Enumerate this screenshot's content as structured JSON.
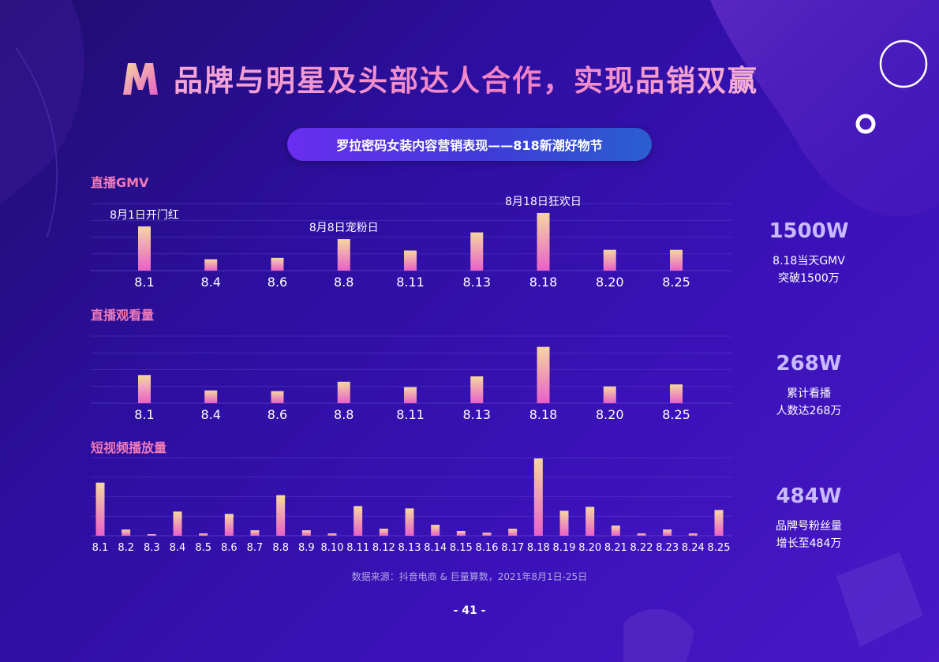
{
  "title": "品牌与明星及头部达人合作，实现品销双赢",
  "subtitle": "罗拉密码女装内容营销表现——818新潮好物节",
  "colors": {
    "bar_top": "#f6d7a0",
    "bar_bottom": "#e860c8",
    "label": "#f07ab8",
    "stat": "#c9b9ff"
  },
  "sections": {
    "gmv": {
      "label": "直播GMV",
      "stat_value": "1500W",
      "stat_line1": "8.18当天GMV",
      "stat_line2": "突破1500万"
    },
    "views": {
      "label": "直播观看量",
      "stat_value": "268W",
      "stat_line1": "累计看播",
      "stat_line2": "人数达268万"
    },
    "video": {
      "label": "短视频播放量",
      "stat_value": "484W",
      "stat_line1": "品牌号粉丝量",
      "stat_line2": "增长至484万"
    }
  },
  "source": "数据来源：抖音电商 & 巨量算数，2021年8月1日-25日",
  "page_number": "- 41 -",
  "chart_data": [
    {
      "type": "bar",
      "id": "gmv",
      "title": "直播GMV",
      "categories": [
        "8.1",
        "8.4",
        "8.6",
        "8.8",
        "8.11",
        "8.13",
        "8.18",
        "8.20",
        "8.25"
      ],
      "values": [
        66,
        17,
        19,
        47,
        30,
        57,
        86,
        31,
        31
      ],
      "ylim": [
        0,
        100
      ],
      "grid": true,
      "annotations": [
        {
          "category": "8.1",
          "text": "8月1日开门红"
        },
        {
          "category": "8.8",
          "text": "8月8日宠粉日"
        },
        {
          "category": "8.18",
          "text": "8月18日狂欢日"
        }
      ]
    },
    {
      "type": "bar",
      "id": "views",
      "title": "直播观看量",
      "categories": [
        "8.1",
        "8.4",
        "8.6",
        "8.8",
        "8.11",
        "8.13",
        "8.18",
        "8.20",
        "8.25"
      ],
      "values": [
        42,
        19,
        18,
        32,
        24,
        40,
        84,
        25,
        28
      ],
      "ylim": [
        0,
        100
      ],
      "grid": true
    },
    {
      "type": "bar",
      "id": "video",
      "title": "短视频播放量",
      "categories": [
        "8.1",
        "8.2",
        "8.3",
        "8.4",
        "8.5",
        "8.6",
        "8.7",
        "8.8",
        "8.9",
        "8.10",
        "8.11",
        "8.12",
        "8.13",
        "8.14",
        "8.15",
        "8.16",
        "8.17",
        "8.18",
        "8.19",
        "8.20",
        "8.21",
        "8.22",
        "8.23",
        "8.24",
        "8.25"
      ],
      "values": [
        68,
        8,
        2,
        31,
        3,
        28,
        7,
        52,
        7,
        3,
        38,
        9,
        35,
        14,
        6,
        4,
        9,
        99,
        32,
        37,
        13,
        3,
        8,
        3,
        33
      ],
      "ylim": [
        0,
        100
      ],
      "grid": true
    }
  ]
}
